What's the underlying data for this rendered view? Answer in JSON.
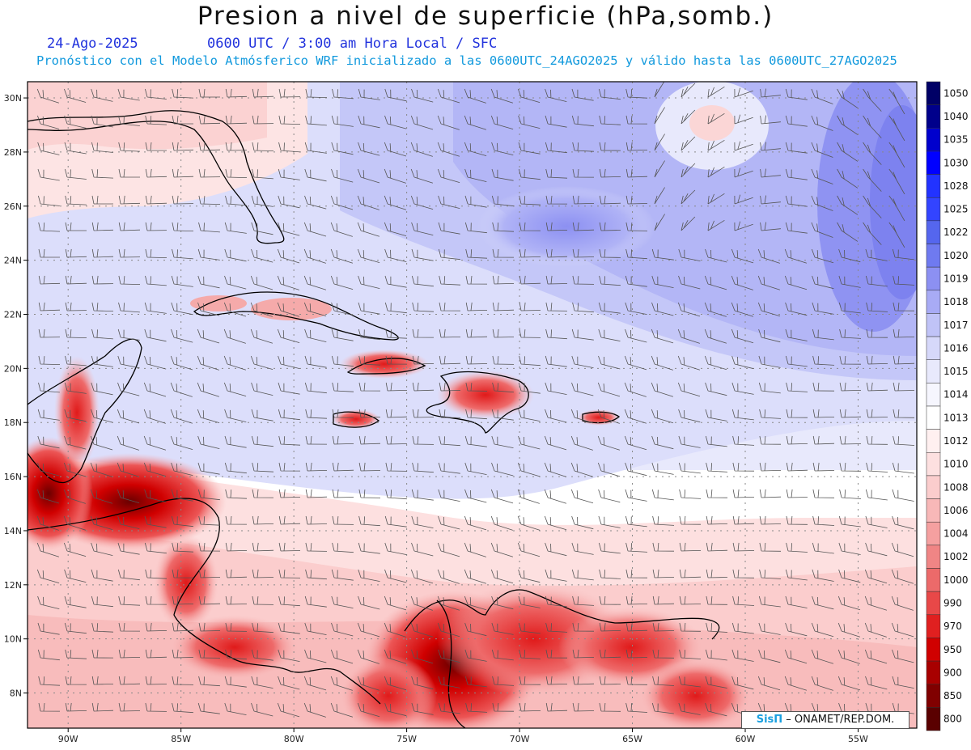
{
  "header": {
    "title": "Presion a nivel de superficie (hPa,somb.)",
    "date": "24-Ago-2025",
    "time": "0600 UTC / 3:00 am Hora Local / SFC",
    "forecast_line": "Pronóstico con el Modelo Atmósferico WRF inicializado a las 0600UTC_24AGO2025 y válido hasta las  0600UTC_27AGO2025"
  },
  "map": {
    "lat_labels": [
      "30N",
      "28N",
      "26N",
      "24N",
      "22N",
      "20N",
      "18N",
      "16N",
      "14N",
      "12N",
      "10N",
      "8N"
    ],
    "lon_labels": [
      "90W",
      "85W",
      "80W",
      "75W",
      "70W",
      "65W",
      "60W",
      "55W"
    ],
    "lat_values": [
      30,
      28,
      26,
      24,
      22,
      20,
      18,
      16,
      14,
      12,
      10,
      8
    ],
    "lon_values": [
      -90,
      -85,
      -80,
      -75,
      -70,
      -65,
      -60,
      -55
    ],
    "extent": {
      "lon_min": -91.8,
      "lon_max": -52.4,
      "lat_min": 6.7,
      "lat_max": 30.6
    }
  },
  "legend": {
    "levels": [
      "1050",
      "1040",
      "1035",
      "1030",
      "1028",
      "1025",
      "1022",
      "1020",
      "1019",
      "1018",
      "1017",
      "1016",
      "1015",
      "1014",
      "1013",
      "1012",
      "1010",
      "1008",
      "1006",
      "1004",
      "1002",
      "1000",
      "990",
      "970",
      "950",
      "900",
      "850",
      "800"
    ],
    "colors": [
      "#000066",
      "#00008b",
      "#0000cd",
      "#0000ff",
      "#2233ff",
      "#3344ff",
      "#5566ee",
      "#6f7af0",
      "#8c90f2",
      "#a8abf5",
      "#c0c3f7",
      "#d6d8fa",
      "#e8e9fc",
      "#f6f6fe",
      "#ffffff",
      "#fff0f0",
      "#fde0e0",
      "#fbcdcd",
      "#f8b8b8",
      "#f5a0a0",
      "#f08585",
      "#ec6a6a",
      "#e84848",
      "#e02020",
      "#d00000",
      "#a80000",
      "#800000",
      "#5a0000"
    ]
  },
  "credit": {
    "brand": "SisΠ",
    "org": " – ONAMET/REP.DOM."
  }
}
